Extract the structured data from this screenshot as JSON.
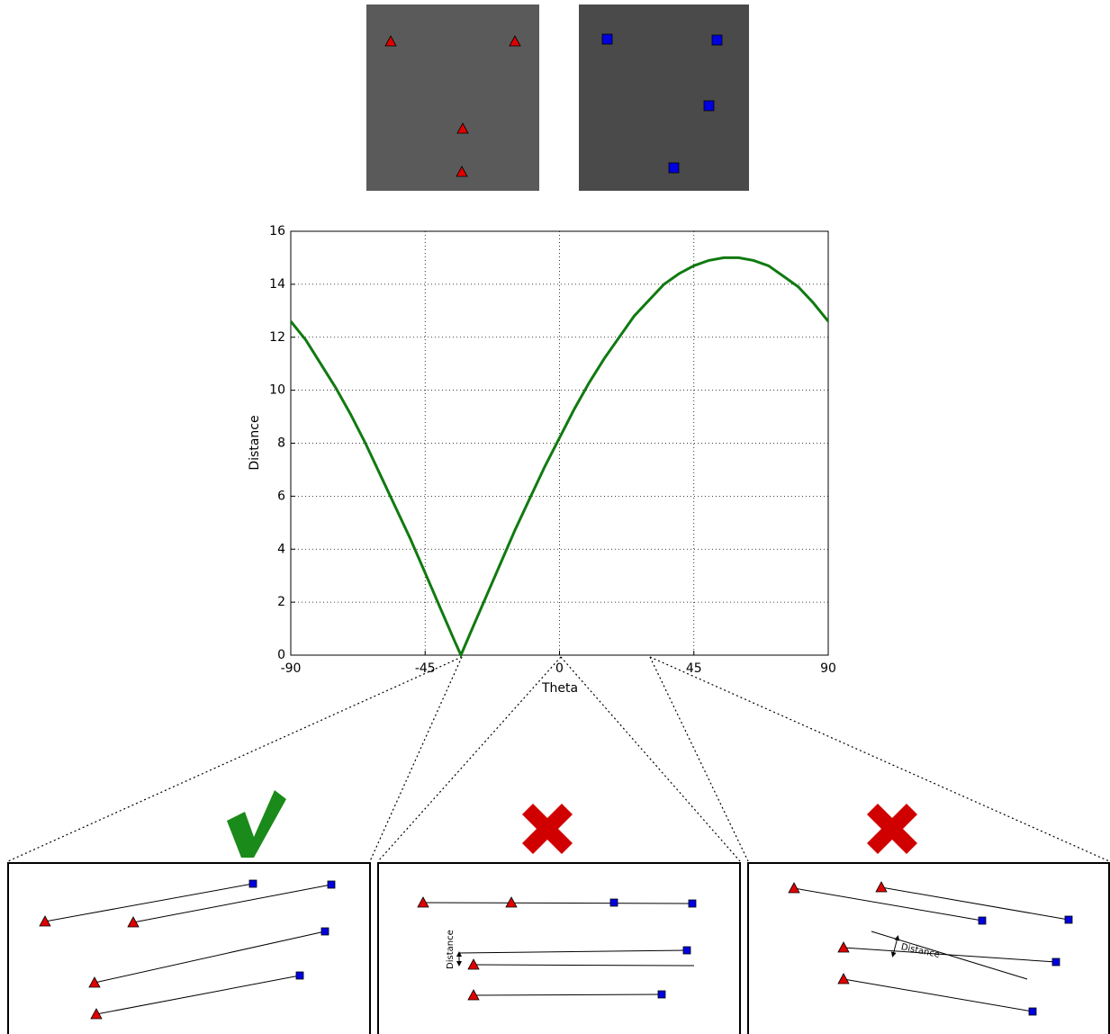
{
  "chart_data": {
    "type": "line",
    "xlabel": "Theta",
    "ylabel": "Distance",
    "x": [
      -90,
      -85,
      -80,
      -75,
      -70,
      -65,
      -60,
      -55,
      -50,
      -45,
      -40,
      -35,
      -33,
      -30,
      -25,
      -20,
      -15,
      -10,
      -5,
      0,
      5,
      10,
      15,
      20,
      25,
      30,
      35,
      40,
      45,
      50,
      55,
      60,
      65,
      70,
      75,
      80,
      85,
      90
    ],
    "series": [
      {
        "name": "Distance",
        "color": "#107a10",
        "values": [
          12.6,
          11.9,
          11.0,
          10.1,
          9.1,
          8.0,
          6.8,
          5.6,
          4.4,
          3.1,
          1.8,
          0.5,
          0,
          0.8,
          2.1,
          3.4,
          4.7,
          5.9,
          7.1,
          8.2,
          9.3,
          10.3,
          11.2,
          12.0,
          12.8,
          13.4,
          14.0,
          14.4,
          14.7,
          14.9,
          15.0,
          15.0,
          14.9,
          14.7,
          14.3,
          13.9,
          13.3,
          12.6
        ]
      }
    ],
    "xlim": [
      -90,
      90
    ],
    "xticks": [
      -90,
      -45,
      0,
      45,
      90
    ],
    "ylim": [
      0,
      16
    ],
    "yticks": [
      0,
      2,
      4,
      6,
      8,
      10,
      12,
      14,
      16
    ],
    "grid": true,
    "annotations": [
      "Distance",
      "Distance"
    ]
  }
}
